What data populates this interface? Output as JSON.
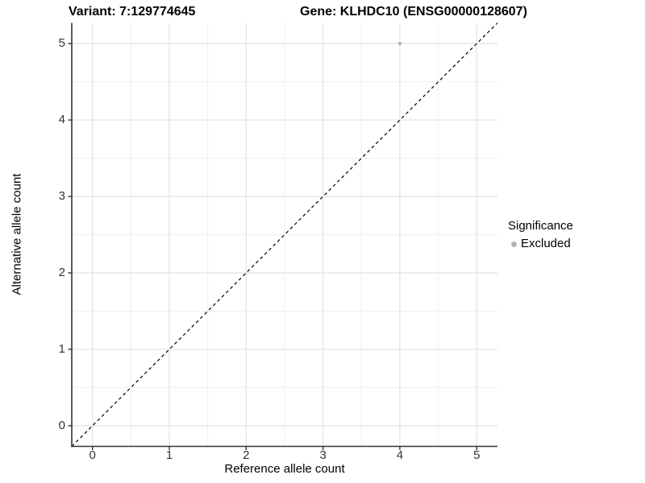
{
  "chart_data": {
    "type": "scatter",
    "title_left": "Variant: 7:129774645",
    "title_right": "Gene: KLHDC10 (ENSG00000128607)",
    "xlabel": "Reference allele count",
    "ylabel": "Alternative allele count",
    "xlim": [
      -0.27,
      5.27
    ],
    "ylim": [
      -0.27,
      5.27
    ],
    "xticks": [
      0,
      1,
      2,
      3,
      4,
      5
    ],
    "yticks": [
      0,
      1,
      2,
      3,
      4,
      5
    ],
    "minor_gridlines_x": [
      0.5,
      1.5,
      2.5,
      3.5,
      4.5
    ],
    "minor_gridlines_y": [
      0.5,
      1.5,
      2.5,
      3.5,
      4.5
    ],
    "grid": "major+minor",
    "reference_line": {
      "type": "identity",
      "style": "dashed",
      "color": "#000000"
    },
    "series": [
      {
        "name": "Excluded",
        "color": "#b5b5b5",
        "marker": "circle",
        "points": [
          {
            "x": 4,
            "y": 5
          }
        ]
      }
    ],
    "legend": {
      "title": "Significance",
      "position": "right",
      "entries": [
        {
          "label": "Excluded",
          "color": "#b5b5b5"
        }
      ]
    }
  },
  "style": {
    "background": "#ffffff",
    "grid_major_color": "#e2e2e2",
    "grid_minor_color": "#efefef",
    "axis_line_color": "#333333",
    "tick_color": "#333333",
    "text_color": "#000000",
    "point_color": "#b5b5b5",
    "dashed_line_color": "#000000"
  }
}
